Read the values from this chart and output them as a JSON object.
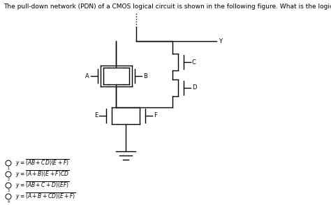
{
  "title": "The pull-down network (PDN) of a CMOS logical circuit is shown in the following figure. What is the logical function of this circuit?",
  "title_fontsize": 6.5,
  "background_color": "#ffffff",
  "options": [
    "y = \\overline{(AB + CD)(E + F)}",
    "y = \\overline{(A + B)(E + F)CD}",
    "y = \\overline{(AB + C + D)(EF)}",
    "y = \\overline{(A + B + CD)(E + F)}"
  ],
  "lw": 1.0,
  "font_circuit": 6.0
}
